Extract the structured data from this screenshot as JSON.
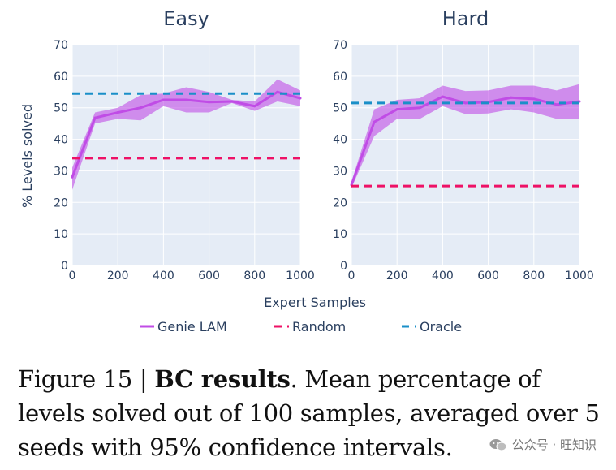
{
  "chart_data": [
    {
      "type": "line",
      "title": "Easy",
      "xlabel": "Expert Samples",
      "ylabel": "% Levels solved",
      "xlim": [
        0,
        1000
      ],
      "ylim": [
        0,
        70
      ],
      "x_ticks": [
        0,
        200,
        400,
        600,
        800,
        1000
      ],
      "y_ticks": [
        0,
        10,
        20,
        30,
        40,
        50,
        60,
        70
      ],
      "grid": true,
      "series": [
        {
          "name": "Genie LAM",
          "color": "#c04ce6",
          "x": [
            0,
            100,
            200,
            300,
            400,
            500,
            600,
            700,
            800,
            900,
            1000
          ],
          "values": [
            28,
            46.8,
            48.5,
            50,
            52.5,
            52.5,
            51.8,
            52,
            50.5,
            55,
            53
          ],
          "lower": [
            24,
            45,
            46.5,
            46,
            50.5,
            48.5,
            48.5,
            51.5,
            49,
            52,
            50.5
          ],
          "upper": [
            31,
            48.5,
            50,
            54,
            54.5,
            56.5,
            55,
            52.5,
            52,
            59,
            55.5
          ]
        },
        {
          "name": "Random",
          "color": "#ee1166",
          "constant": 34
        },
        {
          "name": "Oracle",
          "color": "#1a8fc8",
          "constant": 54.5
        }
      ]
    },
    {
      "type": "line",
      "title": "Hard",
      "xlabel": "Expert Samples",
      "ylabel": "% Levels solved",
      "xlim": [
        0,
        1000
      ],
      "ylim": [
        0,
        70
      ],
      "x_ticks": [
        0,
        200,
        400,
        600,
        800,
        1000
      ],
      "y_ticks": [
        0,
        10,
        20,
        30,
        40,
        50,
        60,
        70
      ],
      "grid": true,
      "series": [
        {
          "name": "Genie LAM",
          "color": "#c04ce6",
          "x": [
            0,
            100,
            200,
            300,
            400,
            500,
            600,
            700,
            800,
            900,
            1000
          ],
          "values": [
            25.5,
            45.5,
            49.5,
            50,
            53.5,
            51.5,
            51.8,
            53.2,
            52.8,
            51,
            52
          ],
          "lower": [
            24.5,
            41,
            46.5,
            46.5,
            50.5,
            48,
            48.2,
            49.5,
            48.5,
            46.5,
            46.5
          ],
          "upper": [
            26.5,
            49.5,
            52.5,
            53,
            57,
            55.3,
            55.5,
            57,
            57,
            55.5,
            57.5
          ]
        },
        {
          "name": "Random",
          "color": "#ee1166",
          "constant": 25.2
        },
        {
          "name": "Oracle",
          "color": "#1a8fc8",
          "constant": 51.5
        }
      ]
    }
  ],
  "legend": {
    "placement": "bottom",
    "items": [
      {
        "name": "Genie LAM",
        "color": "#c04ce6",
        "style": "solid"
      },
      {
        "name": "Random",
        "color": "#ee1166",
        "style": "dash"
      },
      {
        "name": "Oracle",
        "color": "#1a8fc8",
        "style": "dash"
      }
    ]
  },
  "caption": {
    "prefix": "Figure 15 | ",
    "bold": "BC results",
    "rest": ". Mean percentage of levels solved out of 100 samples, averaged over 5 seeds with 95% confidence intervals."
  },
  "watermark": {
    "text": "公众号 · 旺知识",
    "icon": "wechat-icon"
  },
  "colors": {
    "plot_bg": "#e5ecf6",
    "grid": "#ffffff",
    "axis_text": "#2a3f5f"
  }
}
